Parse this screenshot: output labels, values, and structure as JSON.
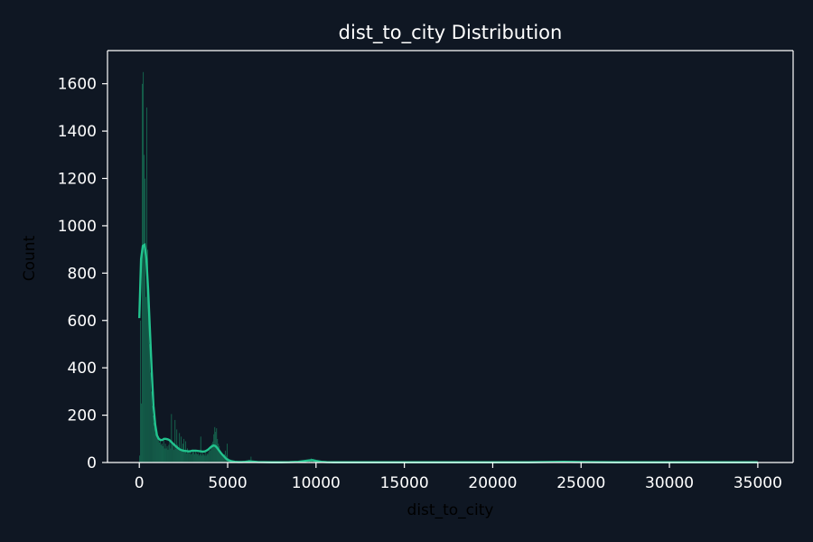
{
  "chart_data": {
    "type": "bar",
    "title": "dist_to_city Distribution",
    "xlabel": "dist_to_city",
    "ylabel": "Count",
    "xlim": [
      -1800,
      37000
    ],
    "ylim": [
      0,
      1740
    ],
    "x_ticks": [
      0,
      5000,
      10000,
      15000,
      20000,
      25000,
      30000,
      35000
    ],
    "y_ticks": [
      0,
      200,
      400,
      600,
      800,
      1000,
      1200,
      1400,
      1600
    ],
    "bin_width": 50,
    "bins": [
      [
        0,
        30
      ],
      [
        50,
        600
      ],
      [
        100,
        250
      ],
      [
        150,
        1600
      ],
      [
        200,
        1650
      ],
      [
        250,
        1300
      ],
      [
        300,
        1200
      ],
      [
        350,
        700
      ],
      [
        400,
        1500
      ],
      [
        450,
        900
      ],
      [
        500,
        650
      ],
      [
        550,
        500
      ],
      [
        600,
        380
      ],
      [
        650,
        300
      ],
      [
        700,
        240
      ],
      [
        750,
        200
      ],
      [
        800,
        170
      ],
      [
        850,
        150
      ],
      [
        900,
        140
      ],
      [
        950,
        120
      ],
      [
        1000,
        110
      ],
      [
        1050,
        95
      ],
      [
        1100,
        85
      ],
      [
        1150,
        100
      ],
      [
        1200,
        75
      ],
      [
        1250,
        80
      ],
      [
        1300,
        70
      ],
      [
        1350,
        95
      ],
      [
        1400,
        60
      ],
      [
        1450,
        80
      ],
      [
        1500,
        60
      ],
      [
        1550,
        70
      ],
      [
        1600,
        55
      ],
      [
        1650,
        75
      ],
      [
        1700,
        90
      ],
      [
        1750,
        60
      ],
      [
        1800,
        205
      ],
      [
        1850,
        80
      ],
      [
        1900,
        75
      ],
      [
        1950,
        55
      ],
      [
        2000,
        180
      ],
      [
        2050,
        60
      ],
      [
        2100,
        140
      ],
      [
        2150,
        75
      ],
      [
        2200,
        60
      ],
      [
        2250,
        125
      ],
      [
        2300,
        55
      ],
      [
        2350,
        110
      ],
      [
        2400,
        50
      ],
      [
        2450,
        80
      ],
      [
        2500,
        100
      ],
      [
        2550,
        45
      ],
      [
        2600,
        90
      ],
      [
        2650,
        40
      ],
      [
        2700,
        60
      ],
      [
        2750,
        50
      ],
      [
        2800,
        40
      ],
      [
        2850,
        45
      ],
      [
        2900,
        35
      ],
      [
        2950,
        40
      ],
      [
        3000,
        55
      ],
      [
        3050,
        45
      ],
      [
        3100,
        35
      ],
      [
        3150,
        50
      ],
      [
        3200,
        40
      ],
      [
        3250,
        35
      ],
      [
        3300,
        40
      ],
      [
        3350,
        30
      ],
      [
        3400,
        35
      ],
      [
        3450,
        110
      ],
      [
        3500,
        30
      ],
      [
        3550,
        45
      ],
      [
        3600,
        35
      ],
      [
        3650,
        30
      ],
      [
        3700,
        45
      ],
      [
        3750,
        30
      ],
      [
        3800,
        40
      ],
      [
        3850,
        35
      ],
      [
        3900,
        45
      ],
      [
        3950,
        60
      ],
      [
        4000,
        50
      ],
      [
        4050,
        65
      ],
      [
        4100,
        80
      ],
      [
        4150,
        90
      ],
      [
        4200,
        120
      ],
      [
        4250,
        150
      ],
      [
        4300,
        130
      ],
      [
        4350,
        145
      ],
      [
        4400,
        100
      ],
      [
        4450,
        80
      ],
      [
        4500,
        70
      ],
      [
        4550,
        50
      ],
      [
        4600,
        40
      ],
      [
        4650,
        35
      ],
      [
        4700,
        30
      ],
      [
        4750,
        25
      ],
      [
        4800,
        35
      ],
      [
        4850,
        50
      ],
      [
        4900,
        30
      ],
      [
        4950,
        80
      ],
      [
        5000,
        20
      ],
      [
        5050,
        15
      ],
      [
        5100,
        10
      ],
      [
        5150,
        8
      ],
      [
        5200,
        6
      ],
      [
        5300,
        5
      ],
      [
        5400,
        4
      ],
      [
        5500,
        3
      ],
      [
        5600,
        3
      ],
      [
        5700,
        3
      ],
      [
        5800,
        2
      ],
      [
        5900,
        3
      ],
      [
        6000,
        2
      ],
      [
        6100,
        3
      ],
      [
        6200,
        12
      ],
      [
        6300,
        25
      ],
      [
        6400,
        5
      ],
      [
        6500,
        3
      ],
      [
        6700,
        2
      ],
      [
        6900,
        2
      ],
      [
        7100,
        2
      ],
      [
        7400,
        1
      ],
      [
        7700,
        2
      ],
      [
        8000,
        1
      ],
      [
        8300,
        2
      ],
      [
        8600,
        1
      ],
      [
        8900,
        2
      ],
      [
        9200,
        3
      ],
      [
        9400,
        5
      ],
      [
        9600,
        8
      ],
      [
        9700,
        18
      ],
      [
        9800,
        12
      ],
      [
        9900,
        6
      ],
      [
        10000,
        3
      ],
      [
        10200,
        2
      ],
      [
        10500,
        1
      ],
      [
        11000,
        1
      ],
      [
        12000,
        1
      ],
      [
        13500,
        1
      ],
      [
        15000,
        1
      ],
      [
        17000,
        1
      ],
      [
        19000,
        1
      ],
      [
        21000,
        1
      ],
      [
        23000,
        1
      ],
      [
        23600,
        2
      ],
      [
        24000,
        3
      ],
      [
        24400,
        2
      ],
      [
        25000,
        1
      ],
      [
        27000,
        1
      ],
      [
        29000,
        1
      ],
      [
        31000,
        1
      ],
      [
        33000,
        1
      ],
      [
        35000,
        1
      ]
    ],
    "kde": {
      "x": [
        0,
        100,
        200,
        300,
        400,
        500,
        600,
        700,
        800,
        900,
        1000,
        1100,
        1200,
        1300,
        1400,
        1500,
        1600,
        1700,
        1800,
        1900,
        2000,
        2100,
        2200,
        2300,
        2400,
        2500,
        2600,
        2700,
        2800,
        2900,
        3000,
        3200,
        3400,
        3600,
        3700,
        3800,
        3900,
        4000,
        4100,
        4200,
        4300,
        4400,
        4500,
        4600,
        4700,
        4800,
        4900,
        5000,
        5200,
        5400,
        5600,
        5800,
        6000,
        6200,
        6400,
        6700,
        7000,
        7500,
        8000,
        8500,
        9000,
        9300,
        9600,
        9800,
        10000,
        10300,
        10600,
        11000,
        12000,
        14000,
        16000,
        18000,
        20000,
        22000,
        23000,
        24000,
        25000,
        27000,
        29000,
        31000,
        33000,
        35000
      ],
      "y": [
        610,
        860,
        915,
        920,
        860,
        730,
        560,
        390,
        240,
        160,
        115,
        100,
        95,
        95,
        100,
        100,
        98,
        95,
        88,
        80,
        73,
        66,
        60,
        55,
        52,
        50,
        49,
        48,
        47,
        48,
        50,
        50,
        48,
        46,
        47,
        50,
        55,
        62,
        68,
        72,
        70,
        62,
        52,
        42,
        33,
        25,
        17,
        11,
        6,
        3,
        2,
        2,
        3,
        5,
        4,
        2,
        1.5,
        1,
        1,
        1.5,
        3,
        6,
        9,
        10,
        7,
        3,
        1.5,
        1,
        1,
        1,
        1,
        1,
        1,
        1,
        2,
        3,
        2,
        1,
        1,
        1,
        1,
        1
      ]
    },
    "colors": {
      "background": "#0f1723",
      "bar": "#1a8f66",
      "bar_edge": "#0f1723",
      "kde": "#22c38e",
      "axes": "#ffffff"
    },
    "grid": false,
    "legend": "none"
  }
}
